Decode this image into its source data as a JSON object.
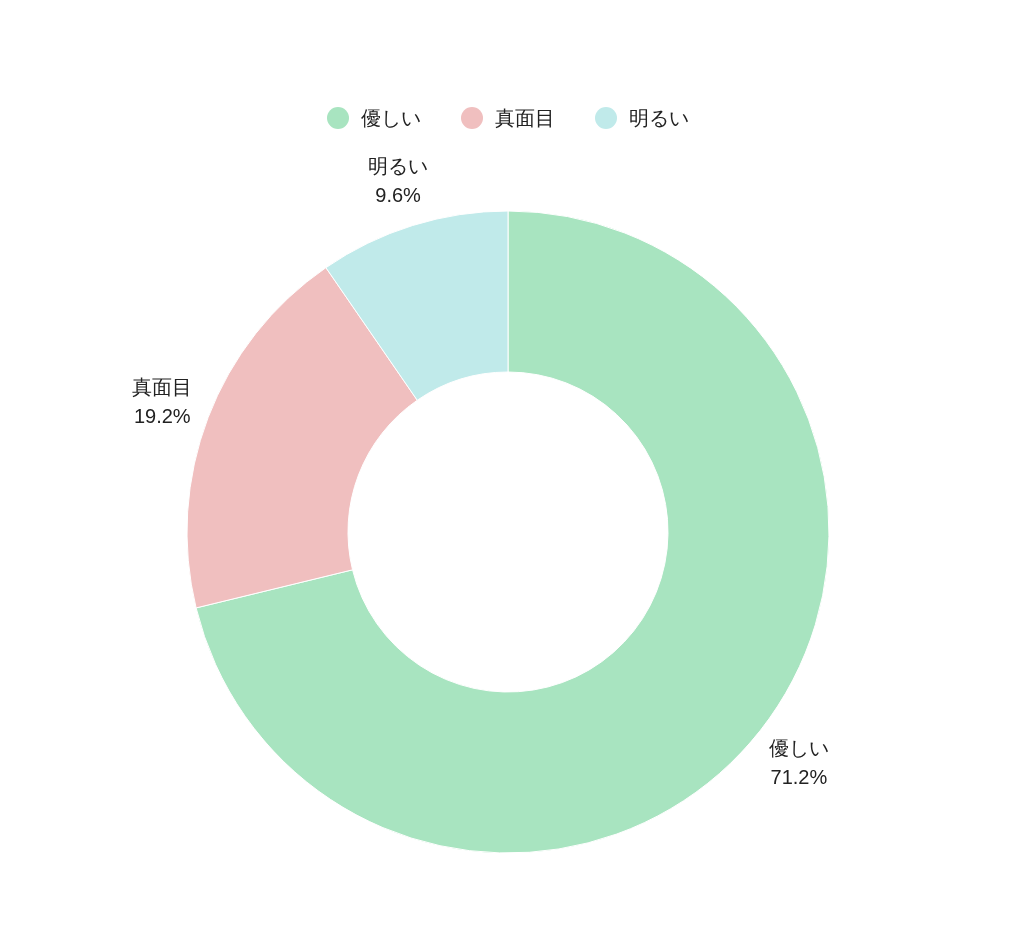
{
  "chart_data": {
    "type": "donut",
    "categories": [
      "優しい",
      "真面目",
      "明るい"
    ],
    "values": [
      71.2,
      19.2,
      9.6
    ],
    "colors": [
      "#a8e4c0",
      "#f0bfbf",
      "#c0eaea"
    ],
    "value_labels": [
      "71.2%",
      "19.2%",
      "9.6%"
    ],
    "legend": "top"
  }
}
